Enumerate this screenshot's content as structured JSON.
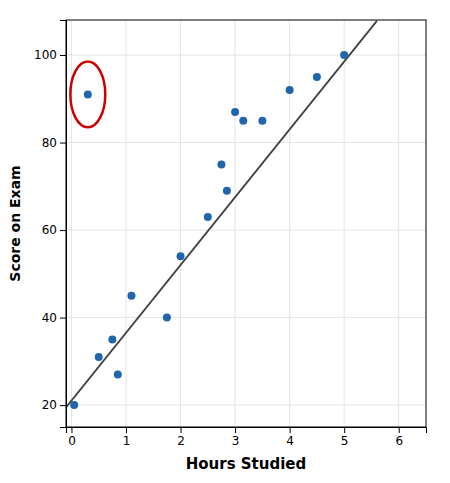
{
  "chart_data": {
    "type": "scatter",
    "xlabel": "Hours Studied",
    "ylabel": "Score on Exam",
    "xlim": [
      -0.1,
      6.5
    ],
    "ylim": [
      15,
      108
    ],
    "xticks": [
      0,
      1,
      2,
      3,
      4,
      5,
      6
    ],
    "yticks": [
      20,
      40,
      60,
      80,
      100
    ],
    "grid": true,
    "series": [
      {
        "type": "scatter",
        "color": "#2166ac",
        "x": [
          0.05,
          0.5,
          0.75,
          0.85,
          1.1,
          1.75,
          2.0,
          2.5,
          2.75,
          2.85,
          3.0,
          3.15,
          3.5,
          4.0,
          4.5,
          5.0
        ],
        "values": [
          20,
          31,
          35,
          27,
          45,
          40,
          54,
          63,
          75,
          69,
          87,
          85,
          85,
          92,
          95,
          100
        ]
      },
      {
        "type": "scatter",
        "color": "#2166ac",
        "x": [
          0.3
        ],
        "values": [
          91
        ]
      },
      {
        "type": "line",
        "color": "#404040",
        "x": [
          -0.1,
          5.6
        ],
        "values": [
          19.45,
          107.8
        ]
      }
    ],
    "highlight": {
      "x": 0.3,
      "y": 91,
      "radius_x": 0.32,
      "radius_y": 7.5,
      "color": "#cc0000"
    }
  }
}
